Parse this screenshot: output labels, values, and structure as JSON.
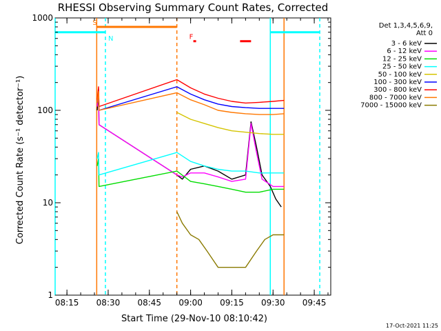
{
  "chart_data": {
    "type": "line",
    "title": "RHESSI Observing Summary Count Rates, Corrected",
    "xlabel": "Start Time (29-Nov-10 08:10:42)",
    "ylabel": "Corrected Count Rate (s⁻¹ detector⁻¹)",
    "y_scale": "log",
    "ylim": [
      1,
      1000
    ],
    "xlim": [
      "08:10:42",
      "09:51:00"
    ],
    "x_ticks": [
      "08:15",
      "08:30",
      "08:45",
      "09:00",
      "09:15",
      "09:30",
      "09:45"
    ],
    "y_ticks": [
      "1",
      "10",
      "100",
      "1000"
    ],
    "legend_header": [
      "Det 1,3,4,5,6,9,",
      "Att 0"
    ],
    "legend_position": "top-right",
    "timestamp": "17-Oct-2021 11:25",
    "series": [
      {
        "name": "3 - 6 keV",
        "color": "#000000",
        "points": [
          [
            "08:26:00",
            100
          ],
          [
            "08:26:30",
            150
          ],
          [
            "08:26:40",
            70
          ],
          [
            "08:55:00",
            20
          ],
          [
            "08:57:00",
            18
          ],
          [
            "09:00:00",
            23
          ],
          [
            "09:05:00",
            25
          ],
          [
            "09:10:00",
            22
          ],
          [
            "09:15:00",
            18
          ],
          [
            "09:20:00",
            20
          ],
          [
            "09:22:00",
            75
          ],
          [
            "09:24:00",
            40
          ],
          [
            "09:26:00",
            20
          ],
          [
            "09:29:00",
            15
          ],
          [
            "09:31:00",
            11
          ],
          [
            "09:33:00",
            9
          ]
        ]
      },
      {
        "name": "6 - 12 keV",
        "color": "#ff00ff",
        "points": [
          [
            "08:26:00",
            110
          ],
          [
            "08:26:30",
            160
          ],
          [
            "08:26:40",
            70
          ],
          [
            "08:55:00",
            20
          ],
          [
            "08:57:00",
            19
          ],
          [
            "09:00:00",
            21
          ],
          [
            "09:05:00",
            21
          ],
          [
            "09:10:00",
            19
          ],
          [
            "09:15:00",
            17
          ],
          [
            "09:20:00",
            18
          ],
          [
            "09:22:00",
            72
          ],
          [
            "09:24:00",
            35
          ],
          [
            "09:26:00",
            18
          ],
          [
            "09:30:00",
            15
          ],
          [
            "09:34:00",
            15
          ]
        ]
      },
      {
        "name": "12 - 25 keV",
        "color": "#00dd00",
        "points": [
          [
            "08:26:00",
            25
          ],
          [
            "08:26:30",
            30
          ],
          [
            "08:26:40",
            15
          ],
          [
            "08:55:00",
            22
          ],
          [
            "09:00:00",
            17
          ],
          [
            "09:05:00",
            16
          ],
          [
            "09:10:00",
            15
          ],
          [
            "09:15:00",
            14
          ],
          [
            "09:20:00",
            13
          ],
          [
            "09:25:00",
            13
          ],
          [
            "09:30:00",
            14
          ],
          [
            "09:34:00",
            14
          ]
        ]
      },
      {
        "name": "25 - 50 keV",
        "color": "#00ffff",
        "points": [
          [
            "08:26:00",
            30
          ],
          [
            "08:26:30",
            35
          ],
          [
            "08:26:40",
            20
          ],
          [
            "08:55:00",
            35
          ],
          [
            "09:00:00",
            28
          ],
          [
            "09:05:00",
            25
          ],
          [
            "09:10:00",
            23
          ],
          [
            "09:15:00",
            22
          ],
          [
            "09:20:00",
            22
          ],
          [
            "09:25:00",
            21
          ],
          [
            "09:30:00",
            21
          ],
          [
            "09:34:00",
            21
          ]
        ]
      },
      {
        "name": "50 - 100 keV",
        "color": "#d4c400",
        "points": [
          [
            "08:55:00",
            95
          ],
          [
            "09:00:00",
            80
          ],
          [
            "09:05:00",
            72
          ],
          [
            "09:10:00",
            65
          ],
          [
            "09:15:00",
            60
          ],
          [
            "09:20:00",
            58
          ],
          [
            "09:25:00",
            56
          ],
          [
            "09:30:00",
            55
          ],
          [
            "09:34:00",
            55
          ]
        ]
      },
      {
        "name": "100 - 300 keV",
        "color": "#0000ff",
        "points": [
          [
            "08:26:00",
            120
          ],
          [
            "08:26:30",
            170
          ],
          [
            "08:26:40",
            100
          ],
          [
            "08:55:00",
            180
          ],
          [
            "09:00:00",
            150
          ],
          [
            "09:05:00",
            130
          ],
          [
            "09:10:00",
            117
          ],
          [
            "09:15:00",
            110
          ],
          [
            "09:20:00",
            107
          ],
          [
            "09:25:00",
            105
          ],
          [
            "09:30:00",
            105
          ],
          [
            "09:34:00",
            105
          ]
        ]
      },
      {
        "name": "300 - 800 keV",
        "color": "#ff0000",
        "points": [
          [
            "08:26:00",
            130
          ],
          [
            "08:26:30",
            180
          ],
          [
            "08:26:40",
            110
          ],
          [
            "08:55:00",
            215
          ],
          [
            "09:00:00",
            175
          ],
          [
            "09:05:00",
            150
          ],
          [
            "09:10:00",
            135
          ],
          [
            "09:15:00",
            125
          ],
          [
            "09:20:00",
            120
          ],
          [
            "09:25:00",
            122
          ],
          [
            "09:30:00",
            125
          ],
          [
            "09:34:00",
            128
          ]
        ]
      },
      {
        "name": "800 - 7000 keV",
        "color": "#ff7700",
        "points": [
          [
            "08:26:00",
            120
          ],
          [
            "08:26:30",
            160
          ],
          [
            "08:26:40",
            100
          ],
          [
            "08:55:00",
            155
          ],
          [
            "09:00:00",
            130
          ],
          [
            "09:05:00",
            115
          ],
          [
            "09:10:00",
            100
          ],
          [
            "09:15:00",
            95
          ],
          [
            "09:20:00",
            92
          ],
          [
            "09:25:00",
            90
          ],
          [
            "09:30:00",
            90
          ],
          [
            "09:34:00",
            92
          ]
        ]
      },
      {
        "name": "7000 - 15000 keV",
        "color": "#8a7a00",
        "points": [
          [
            "08:55:00",
            8
          ],
          [
            "08:57:00",
            6
          ],
          [
            "09:00:00",
            4.5
          ],
          [
            "09:03:00",
            4
          ],
          [
            "09:06:00",
            3
          ],
          [
            "09:10:00",
            2
          ],
          [
            "09:15:00",
            2
          ],
          [
            "09:20:00",
            2
          ],
          [
            "09:24:00",
            3
          ],
          [
            "09:27:00",
            4
          ],
          [
            "09:30:00",
            4.5
          ],
          [
            "09:34:00",
            4.5
          ]
        ]
      }
    ],
    "vertical_lines": [
      {
        "time": "08:10:42",
        "color": "#00ffff",
        "style": "solid"
      },
      {
        "time": "08:25:50",
        "color": "#ff7700",
        "style": "solid"
      },
      {
        "time": "08:29:00",
        "color": "#00ffff",
        "style": "dashed"
      },
      {
        "time": "08:55:00",
        "color": "#ff7700",
        "style": "dashed"
      },
      {
        "time": "09:29:00",
        "color": "#00ffff",
        "style": "solid"
      },
      {
        "time": "09:34:00",
        "color": "#ff7700",
        "style": "solid"
      },
      {
        "time": "09:47:00",
        "color": "#00ffff",
        "style": "dashed"
      }
    ],
    "flag_bars": [
      {
        "label": "N",
        "color": "#00ffff",
        "start": "08:10:42",
        "end": "08:29:00",
        "level": 700
      },
      {
        "label": "",
        "color": "#00ffff",
        "start": "09:29:00",
        "end": "09:47:00",
        "level": 700
      },
      {
        "label": "S",
        "color": "#ff7700",
        "start": "08:25:50",
        "end": "08:55:00",
        "level": 800
      },
      {
        "label": "F",
        "color": "#ff0000",
        "start": "09:01:00",
        "end": "09:02:00",
        "level": 560
      },
      {
        "label": "",
        "color": "#ff0000",
        "start": "09:18:00",
        "end": "09:22:00",
        "level": 560
      }
    ]
  }
}
